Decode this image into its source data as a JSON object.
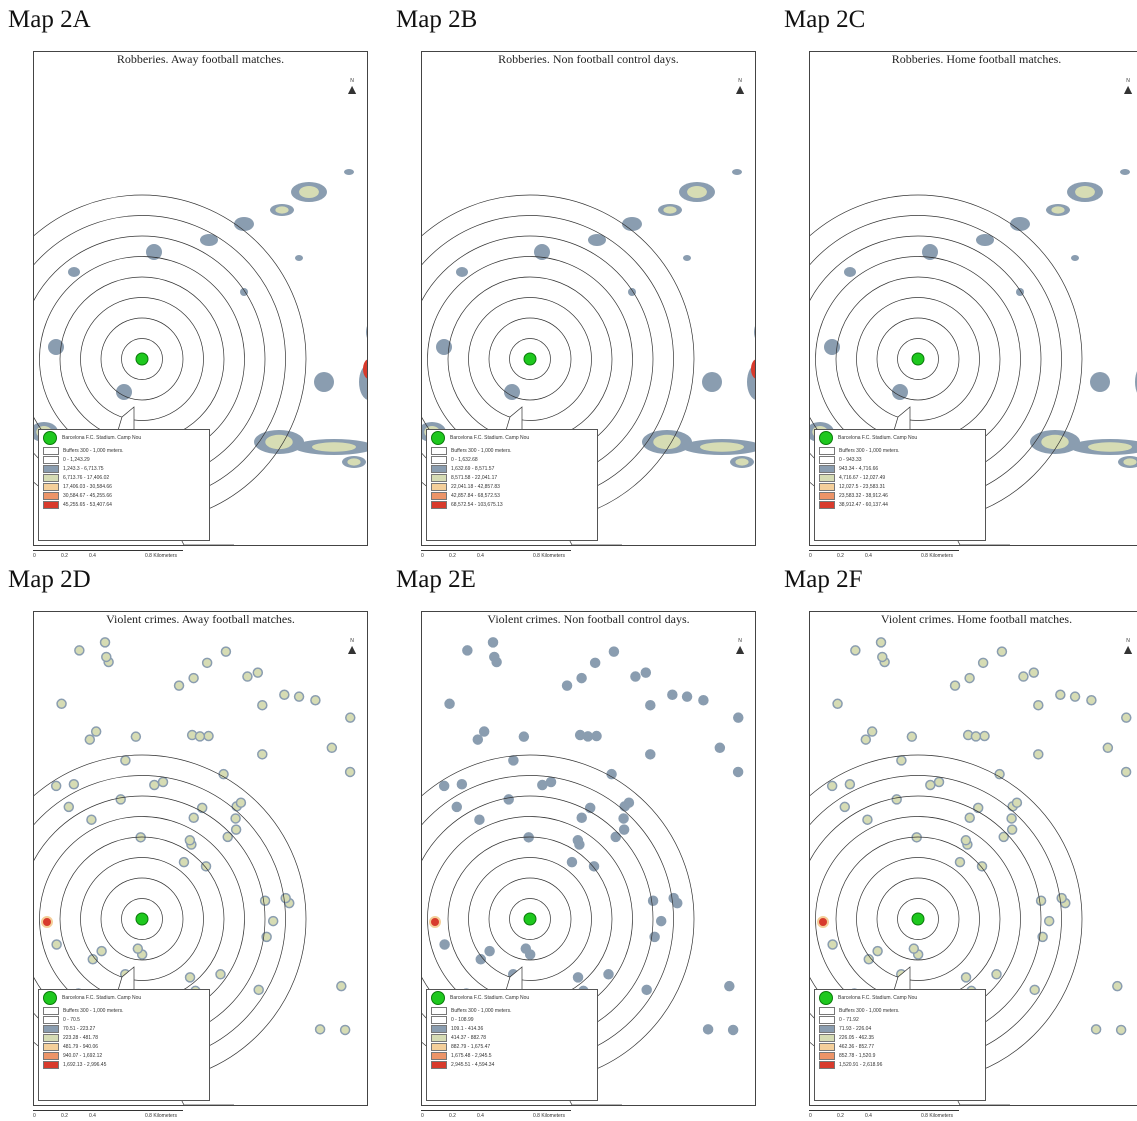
{
  "panels": [
    {
      "label": "Map 2A",
      "title": "Robberies. Away football matches.",
      "legend": {
        "stadium": "Barcelona F.C. Stadium. Camp Nou",
        "buffers": "Buffers 300 - 1,000 meters.",
        "classes": [
          "0 - 1,243.29",
          "1,243.3 - 6,713.75",
          "6,713.76 - 17,406.02",
          "17,406.03 - 30,584.66",
          "30,584.67 - 45,255.66",
          "45,255.65 - 53,407.64"
        ]
      }
    },
    {
      "label": "Map 2B",
      "title": "Robberies. Non football control days.",
      "legend": {
        "stadium": "Barcelona F.C. Stadium. Camp Nou",
        "buffers": "Buffers 300 - 1,000 meters.",
        "classes": [
          "0 - 1,632.68",
          "1,632.69 - 8,571.57",
          "8,571.58 - 22,041.17",
          "22,041.18 - 42,857.83",
          "42,857.84 - 68,572.53",
          "68,572.54 - 103,675.13"
        ]
      }
    },
    {
      "label": "Map 2C",
      "title": "Robberies. Home football matches.",
      "legend": {
        "stadium": "Barcelona F.C. Stadium. Camp Nou",
        "buffers": "Buffers 300 - 1,000 meters.",
        "classes": [
          "0 - 943.33",
          "943.34 - 4,716.66",
          "4,716.67 - 12,027.49",
          "12,027.5 - 23,583.31",
          "23,583.32 - 38,912.46",
          "38,912.47 - 60,137.44"
        ]
      }
    },
    {
      "label": "Map 2D",
      "title": "Violent crimes. Away football matches.",
      "legend": {
        "stadium": "Barcelona F.C. Stadium. Camp Nou",
        "buffers": "Buffers 300 - 1,000 meters.",
        "classes": [
          "0 - 70.5",
          "70.51 - 223.27",
          "223.28 - 481.78",
          "481.79 - 940.06",
          "940.07 - 1,692.12",
          "1,692.13 - 2,996.45"
        ]
      }
    },
    {
      "label": "Map 2E",
      "title": "Violent crimes. Non football control days.",
      "legend": {
        "stadium": "Barcelona F.C. Stadium. Camp Nou",
        "buffers": "Buffers 300 - 1,000 meters.",
        "classes": [
          "0 - 108.99",
          "109.1 - 414.36",
          "414.37 - 882.78",
          "882.79 - 1,675.47",
          "1,675.48 - 2,945.5",
          "2,945.51 - 4,594.34"
        ]
      }
    },
    {
      "label": "Map 2F",
      "title": "Violent crimes. Home football matches.",
      "legend": {
        "stadium": "Barcelona F.C. Stadium. Camp Nou",
        "buffers": "Buffers 300 - 1,000 meters.",
        "classes": [
          "0 - 71.92",
          "71.93 - 226.04",
          "226.05 - 462.35",
          "462.36 - 852.77",
          "852.78 - 1,520.9",
          "1,520.91 - 2,618.96"
        ]
      }
    }
  ],
  "scale": {
    "ticks": [
      "0",
      "0.2",
      "0.4",
      "0.8 Kilometers"
    ]
  },
  "north": "N",
  "colors": {
    "class0": "#ffffff",
    "class1": "#8a9db0",
    "class2": "#d6dcb4",
    "class3": "#f4cf9a",
    "class4": "#ec9468",
    "class5": "#d83a2c",
    "stadium": "#1ec81e",
    "rings": "#333333"
  }
}
